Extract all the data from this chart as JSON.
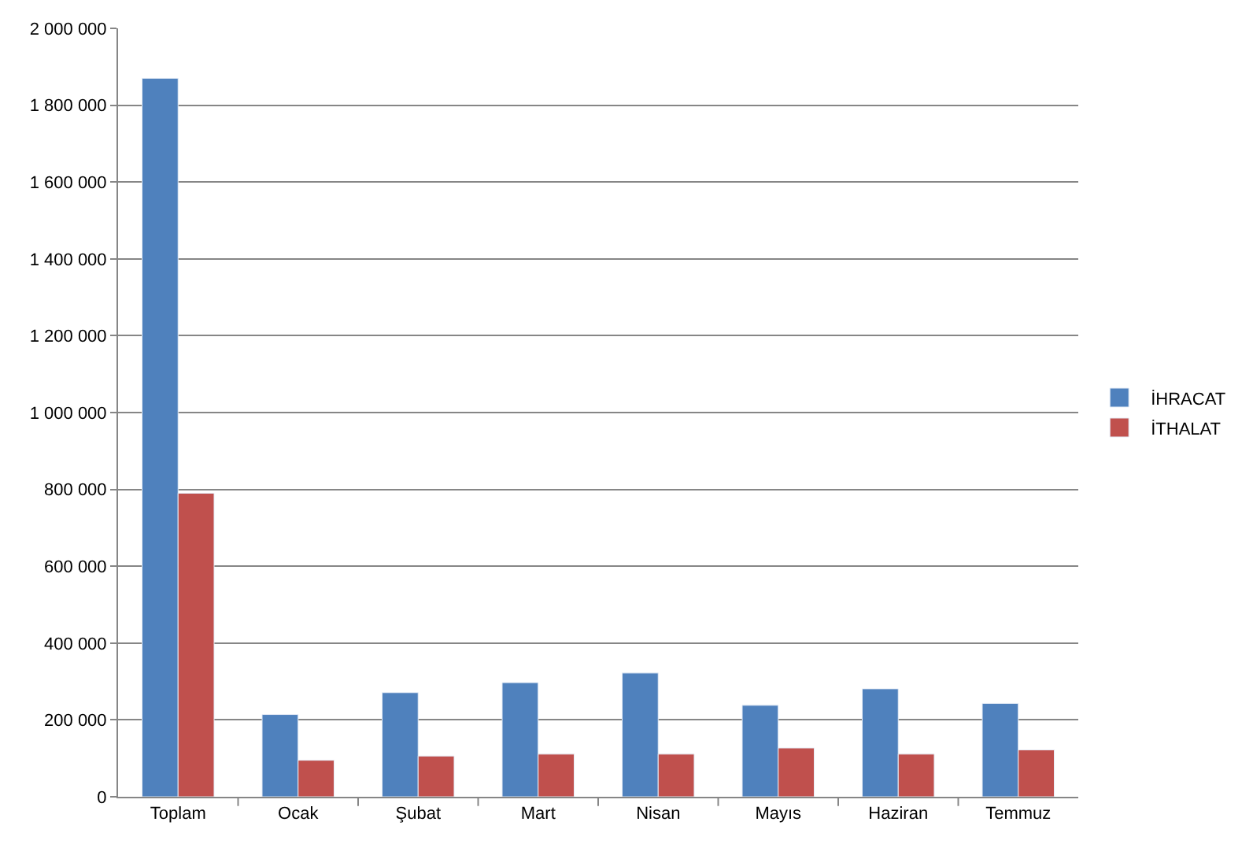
{
  "chart_data": {
    "type": "bar",
    "categories": [
      "Toplam",
      "Ocak",
      "Şubat",
      "Mart",
      "Nisan",
      "Mayıs",
      "Haziran",
      "Temmuz"
    ],
    "series": [
      {
        "name": "İHRACAT",
        "color": "#4f81bd",
        "values": [
          1870000,
          214000,
          271000,
          297000,
          322000,
          238000,
          281000,
          243000
        ]
      },
      {
        "name": "İTHALAT",
        "color": "#c0504d",
        "values": [
          790000,
          95000,
          106000,
          111000,
          111000,
          127000,
          111000,
          122000
        ]
      }
    ],
    "ylim": [
      0,
      2000000
    ],
    "yticks": [
      {
        "value": 0,
        "label": "0"
      },
      {
        "value": 200000,
        "label": "200 000"
      },
      {
        "value": 400000,
        "label": "400 000"
      },
      {
        "value": 600000,
        "label": "600 000"
      },
      {
        "value": 800000,
        "label": "800 000"
      },
      {
        "value": 1000000,
        "label": "1 000 000"
      },
      {
        "value": 1200000,
        "label": "1 200 000"
      },
      {
        "value": 1400000,
        "label": "1 400 000"
      },
      {
        "value": 1600000,
        "label": "1 600 000"
      },
      {
        "value": 1800000,
        "label": "1 800 000"
      },
      {
        "value": 2000000,
        "label": "2 000 000"
      }
    ],
    "grid": "y",
    "legend": "right"
  }
}
